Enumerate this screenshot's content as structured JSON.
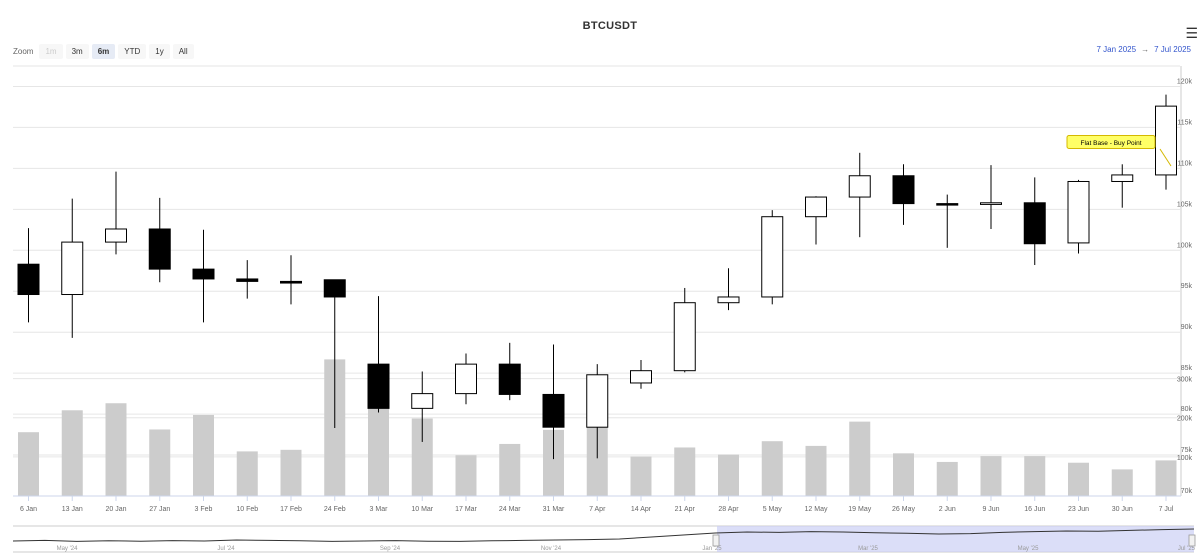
{
  "header": {
    "title": "BTCUSDT",
    "menu_icon": "hamburger-menu-icon"
  },
  "zoom": {
    "label": "Zoom",
    "buttons": [
      {
        "label": "1m",
        "state": "disabled"
      },
      {
        "label": "3m",
        "state": "normal"
      },
      {
        "label": "6m",
        "state": "active"
      },
      {
        "label": "YTD",
        "state": "normal"
      },
      {
        "label": "1y",
        "state": "normal"
      },
      {
        "label": "All",
        "state": "normal"
      }
    ]
  },
  "range": {
    "from": "7 Jan 2025",
    "arrow": "→",
    "to": "7 Jul 2025"
  },
  "chart_data": {
    "type": "candlestick",
    "title": "BTCUSDT",
    "categories": [
      "6 Jan",
      "13 Jan",
      "20 Jan",
      "27 Jan",
      "3 Feb",
      "10 Feb",
      "17 Feb",
      "24 Feb",
      "3 Mar",
      "10 Mar",
      "17 Mar",
      "24 Mar",
      "31 Mar",
      "7 Apr",
      "14 Apr",
      "21 Apr",
      "28 Apr",
      "5 May",
      "12 May",
      "19 May",
      "26 May",
      "2 Jun",
      "9 Jun",
      "16 Jun",
      "23 Jun",
      "30 Jun",
      "7 Jul"
    ],
    "price_ticks": [
      "70k",
      "75k",
      "80k",
      "85k",
      "90k",
      "95k",
      "100k",
      "105k",
      "110k",
      "115k",
      "120k"
    ],
    "price_ylim": [
      70000,
      122500
    ],
    "ohlc": [
      [
        98300,
        102700,
        91200,
        94600
      ],
      [
        94600,
        106300,
        89300,
        101000
      ],
      [
        101000,
        109600,
        99500,
        102600
      ],
      [
        102600,
        106400,
        96100,
        97700
      ],
      [
        97700,
        102500,
        91200,
        96500
      ],
      [
        96500,
        98800,
        94100,
        96200
      ],
      [
        96200,
        99400,
        93400,
        96000
      ],
      [
        96400,
        96400,
        78300,
        94300
      ],
      [
        86100,
        94400,
        80200,
        80700
      ],
      [
        80700,
        85200,
        76600,
        82500
      ],
      [
        82500,
        87400,
        81200,
        86100
      ],
      [
        86100,
        88700,
        81700,
        82400
      ],
      [
        82400,
        88500,
        74500,
        78400
      ],
      [
        78400,
        86100,
        74600,
        84800
      ],
      [
        83800,
        86600,
        83100,
        85300
      ],
      [
        85300,
        95400,
        85100,
        93600
      ],
      [
        93600,
        97800,
        92700,
        94300
      ],
      [
        94300,
        104900,
        93400,
        104100
      ],
      [
        104100,
        106600,
        100700,
        106500
      ],
      [
        106500,
        111900,
        101600,
        109100
      ],
      [
        109100,
        110500,
        103100,
        105700
      ],
      [
        105700,
        106800,
        100300,
        105600
      ],
      [
        105600,
        110400,
        102600,
        105800
      ],
      [
        105800,
        108900,
        98200,
        100800
      ],
      [
        100900,
        108600,
        99600,
        108400
      ],
      [
        108400,
        110500,
        105200,
        109200
      ],
      [
        109200,
        119000,
        107400,
        117600
      ]
    ],
    "volume_ticks": [
      "100k",
      "200k",
      "300k"
    ],
    "volume": [
      163000,
      219000,
      237000,
      170000,
      207000,
      114000,
      118000,
      349000,
      292000,
      198000,
      104000,
      133000,
      169000,
      280000,
      101000,
      124000,
      106000,
      140000,
      128000,
      190000,
      109000,
      87000,
      102000,
      102000,
      85000,
      68000,
      91000
    ],
    "annotation": {
      "text": "Flat Base - Buy Point",
      "category": "7 Jul",
      "color": "#ffff66"
    },
    "colors": {
      "up": "#ffffff",
      "down": "#000000",
      "volume": "#cccccc",
      "navigator_fill": "#ccd0f5"
    },
    "navigator": {
      "labels": [
        "May '24",
        "Jul '24",
        "Sep '24",
        "Nov '24",
        "Jan '25",
        "Mar '25",
        "May '25",
        "Jul '25"
      ],
      "series": [
        0.35,
        0.38,
        0.33,
        0.36,
        0.34,
        0.37,
        0.35,
        0.4,
        0.38,
        0.36,
        0.33,
        0.35,
        0.37,
        0.34,
        0.33,
        0.36,
        0.38,
        0.4,
        0.42,
        0.45,
        0.55,
        0.65,
        0.75,
        0.8,
        0.78,
        0.82,
        0.8,
        0.76,
        0.74,
        0.7,
        0.72,
        0.78,
        0.82,
        0.85,
        0.84,
        0.88,
        0.92,
        0.95
      ]
    }
  }
}
